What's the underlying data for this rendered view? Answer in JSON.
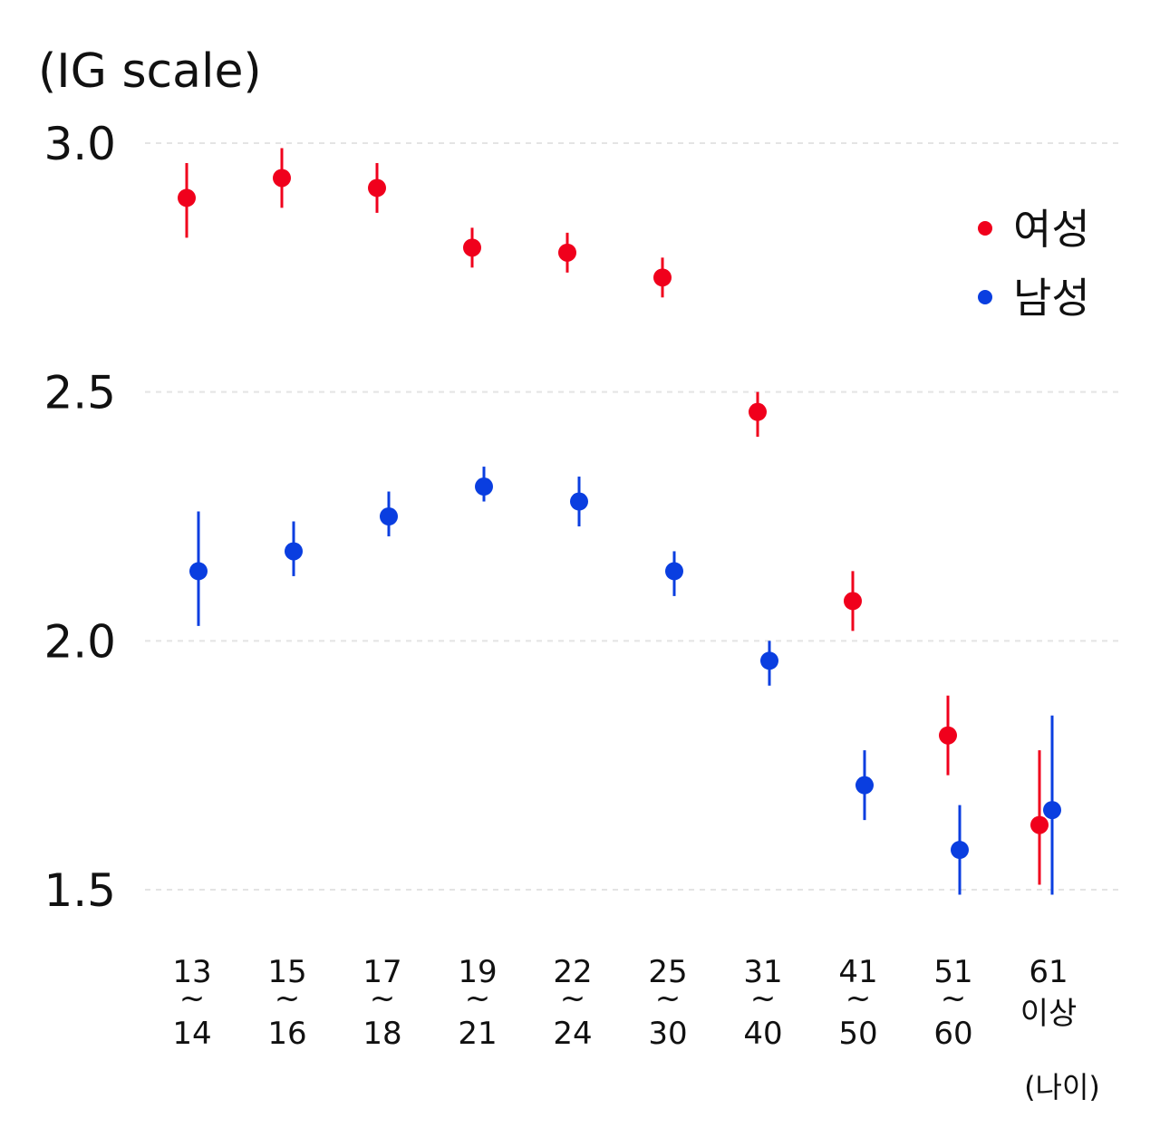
{
  "chart_data": {
    "type": "scatter",
    "ylabel": "(IG scale)",
    "xlabel": "(나이)",
    "ylim": [
      1.5,
      3.0
    ],
    "yticks": [
      "3.0",
      "2.5",
      "2.0",
      "1.5"
    ],
    "grid": true,
    "legend_position": "top-right",
    "categories": [
      [
        "13",
        "~",
        "14"
      ],
      [
        "15",
        "~",
        "16"
      ],
      [
        "17",
        "~",
        "18"
      ],
      [
        "19",
        "~",
        "21"
      ],
      [
        "22",
        "~",
        "24"
      ],
      [
        "25",
        "~",
        "30"
      ],
      [
        "31",
        "~",
        "40"
      ],
      [
        "41",
        "~",
        "50"
      ],
      [
        "51",
        "~",
        "60"
      ],
      [
        "61",
        "이상",
        ""
      ]
    ],
    "series": [
      {
        "name": "여성",
        "color": "#f0001c",
        "values": [
          2.89,
          2.93,
          2.91,
          2.79,
          2.78,
          2.73,
          2.46,
          2.08,
          1.81,
          1.63
        ],
        "lower": [
          2.81,
          2.87,
          2.86,
          2.75,
          2.74,
          2.69,
          2.41,
          2.02,
          1.73,
          1.51
        ],
        "upper": [
          2.96,
          2.99,
          2.96,
          2.83,
          2.82,
          2.77,
          2.5,
          2.14,
          1.89,
          1.78
        ]
      },
      {
        "name": "남성",
        "color": "#0a3ee0",
        "values": [
          2.14,
          2.18,
          2.25,
          2.31,
          2.28,
          2.14,
          1.96,
          1.71,
          1.58,
          1.66
        ],
        "lower": [
          2.03,
          2.13,
          2.21,
          2.28,
          2.23,
          2.09,
          1.91,
          1.64,
          1.49,
          1.49
        ],
        "upper": [
          2.26,
          2.24,
          2.3,
          2.35,
          2.33,
          2.18,
          2.0,
          1.78,
          1.67,
          1.85
        ]
      }
    ]
  }
}
